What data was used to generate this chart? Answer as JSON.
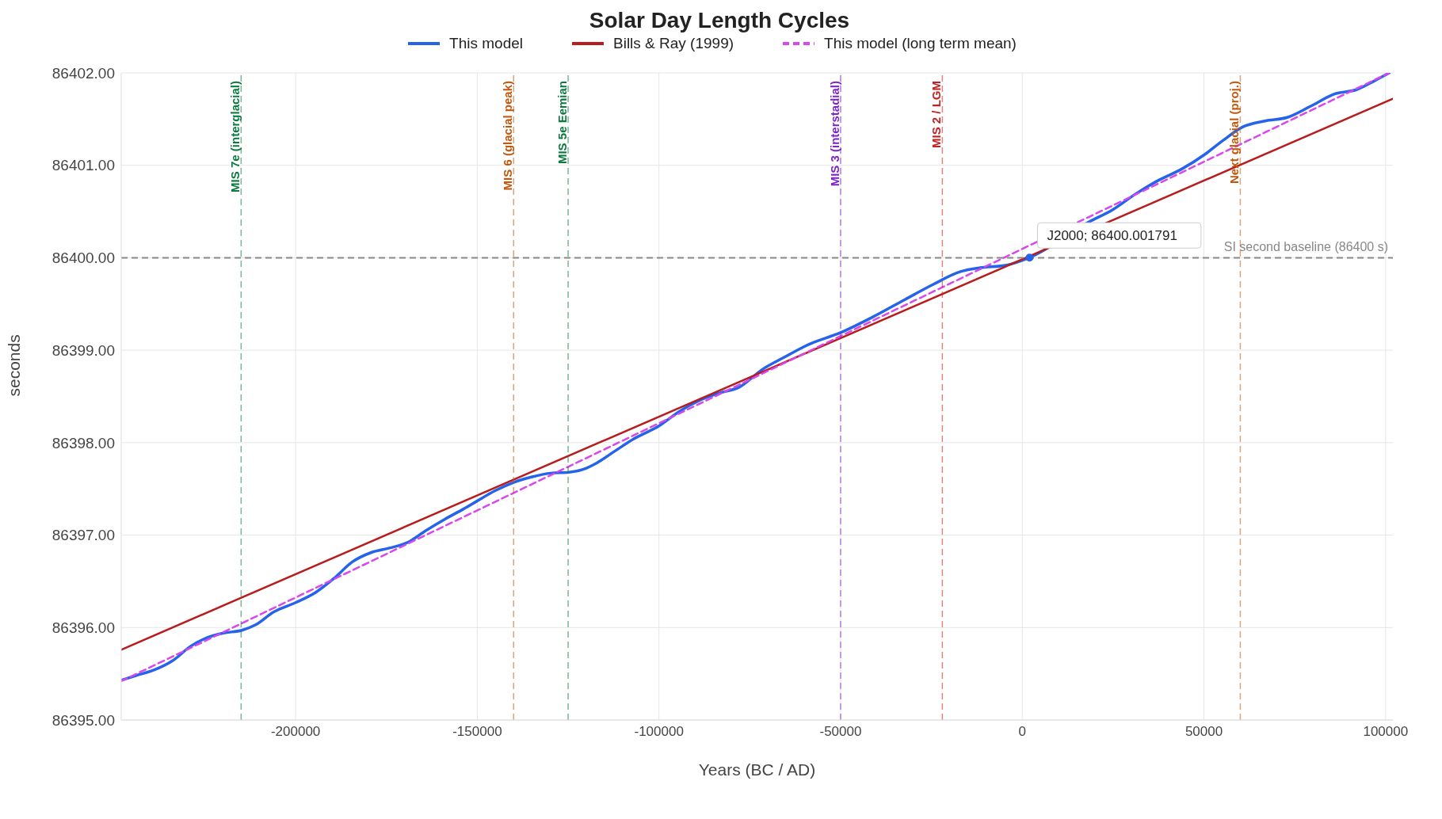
{
  "chart_data": {
    "type": "line",
    "title": "Solar Day Length Cycles",
    "xlabel": "Years (BC / AD)",
    "ylabel": "seconds",
    "xlim": [
      -248000,
      102000
    ],
    "xticks": [
      -200000,
      -150000,
      -100000,
      -50000,
      0,
      50000,
      100000
    ],
    "ylim": [
      86395,
      86402
    ],
    "yticks": [
      {
        "value": 86395,
        "label": "86395.00"
      },
      {
        "value": 86396,
        "label": "86396.00"
      },
      {
        "value": 86397,
        "label": "86397.00"
      },
      {
        "value": 86398,
        "label": "86398.00"
      },
      {
        "value": 86399,
        "label": "86399.00"
      },
      {
        "value": 86400,
        "label": "86400.00"
      },
      {
        "value": 86401,
        "label": "86401.00"
      },
      {
        "value": 86402,
        "label": "86402.00"
      }
    ],
    "grid": true,
    "legend": "top",
    "marker": "none",
    "series": [
      {
        "name": "This model",
        "color": "#2563eb",
        "line_style": "solid",
        "x": [
          -248000,
          -244000,
          -239000,
          -233900,
          -228800,
          -224400,
          -219900,
          -214800,
          -211000,
          -206000,
          -200000,
          -194500,
          -189500,
          -184400,
          -179300,
          -174200,
          -169200,
          -164100,
          -159000,
          -153900,
          -150000,
          -145100,
          -140000,
          -134900,
          -129800,
          -124800,
          -120900,
          -117100,
          -112100,
          -107000,
          -100000,
          -94300,
          -89200,
          -83100,
          -77900,
          -71600,
          -65200,
          -58900,
          -50000,
          -41100,
          -32200,
          -24600,
          -17000,
          -11900,
          -4300,
          1900,
          18500,
          24900,
          31200,
          37600,
          43900,
          50300,
          55300,
          60400,
          66800,
          73100,
          79400,
          85800,
          92100,
          97200,
          101000
        ],
        "values": [
          86395.43,
          86395.48,
          86395.54,
          86395.64,
          86395.8,
          86395.89,
          86395.94,
          86395.97,
          86396.03,
          86396.17,
          86396.27,
          86396.38,
          86396.53,
          86396.71,
          86396.81,
          86396.86,
          86396.92,
          86397.05,
          86397.17,
          86397.28,
          86397.37,
          86397.48,
          86397.57,
          86397.63,
          86397.67,
          86397.68,
          86397.71,
          86397.78,
          86397.91,
          86398.04,
          86398.18,
          86398.34,
          86398.45,
          86398.54,
          86398.6,
          86398.79,
          86398.93,
          86399.06,
          86399.19,
          86399.36,
          86399.55,
          86399.71,
          86399.85,
          86399.89,
          86399.92,
          86400.0,
          86400.39,
          86400.52,
          86400.69,
          86400.84,
          86400.96,
          86401.12,
          86401.27,
          86401.41,
          86401.48,
          86401.52,
          86401.64,
          86401.77,
          86401.82,
          86401.92,
          86402.0
        ]
      },
      {
        "name": "Bills & Ray (1999)",
        "color": "#b91c1c",
        "line_style": "solid",
        "x": [
          -248000,
          102000
        ],
        "values": [
          86395.76,
          86401.72
        ]
      },
      {
        "name": "This model (long term mean)",
        "color": "#d946ef",
        "line_style": "dashed",
        "x": [
          -248000,
          101000
        ],
        "values": [
          86395.42,
          86402.0
        ]
      },
      {
        "type": "scatter",
        "color": "#2563eb",
        "marker": "circle",
        "x": [
          2000
        ],
        "values": [
          86400.001791
        ]
      }
    ],
    "ref_lines": [
      {
        "axis": "y",
        "value": 86400,
        "label": "SI second baseline (86400 s)",
        "color": "#888888",
        "line_style": "dashed"
      },
      {
        "axis": "x",
        "value": -215000,
        "label": "MIS 7e (interglacial)",
        "color": "#0b7a3e",
        "line_style": "dashed"
      },
      {
        "axis": "x",
        "value": -140000,
        "label": "MIS 6 (glacial peak)",
        "color": "#c2570c",
        "line_style": "dashed"
      },
      {
        "axis": "x",
        "value": -125000,
        "label": "MIS 5e Eemian",
        "color": "#0b7a3e",
        "line_style": "dashed"
      },
      {
        "axis": "x",
        "value": -50000,
        "label": "MIS 3 (interstadial)",
        "color": "#7e22ce",
        "line_style": "dashed"
      },
      {
        "axis": "x",
        "value": -22000,
        "label": "MIS 2 / LGM",
        "color": "#c81e1e",
        "line_style": "dashed"
      },
      {
        "axis": "x",
        "value": 60000,
        "label": "Next glacial (proj.)",
        "color": "#c2570c",
        "line_style": "dashed"
      }
    ],
    "annotations": [
      "J2000; 86400.001791"
    ]
  }
}
